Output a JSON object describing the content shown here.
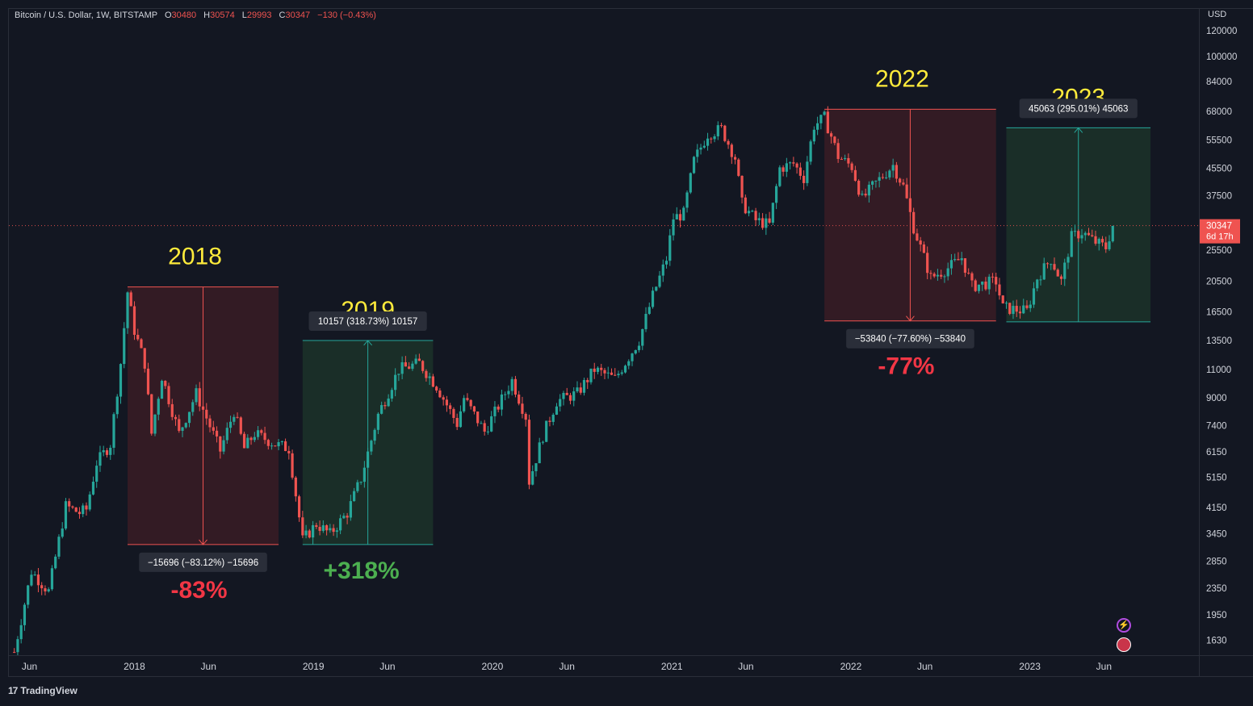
{
  "legend": {
    "symbol": "Bitcoin / U.S. Dollar, 1W, BITSTAMP",
    "o_label": "O",
    "o_value": "30480",
    "h_label": "H",
    "h_value": "30574",
    "l_label": "L",
    "l_value": "29993",
    "c_label": "C",
    "c_value": "30347",
    "change": "−130 (−0.43%)"
  },
  "currency": "USD",
  "last_price": {
    "value": "30347",
    "countdown": "6d 17h"
  },
  "brand": {
    "logo": "17",
    "name": "TradingView"
  },
  "colors": {
    "up": "#26a69a",
    "down": "#ef5350",
    "year_label": "#ffeb3b",
    "neg_pct": "#f23645",
    "pos_pct": "#4caf50",
    "neg_box_fill": "#391c24",
    "pos_box_fill": "#1c3329"
  },
  "icons": [
    "lightning-icon",
    "us-flag-icon"
  ],
  "chart_data": {
    "type": "candlestick",
    "title": "Bitcoin / U.S. Dollar, 1W, BITSTAMP",
    "scale": "log",
    "ylim": [
      1450,
      140000
    ],
    "xlim": [
      "2017-04-20",
      "2023-12-15"
    ],
    "y_ticks": [
      120000,
      100000,
      84000,
      68000,
      55500,
      45500,
      37500,
      25500,
      20500,
      16500,
      13500,
      11000,
      9000,
      7400,
      6150,
      5150,
      4150,
      3450,
      2850,
      2350,
      1950,
      1630
    ],
    "x_ticks": [
      {
        "date": "2017-06-01",
        "label": "Jun"
      },
      {
        "date": "2018-01-01",
        "label": "2018"
      },
      {
        "date": "2018-06-01",
        "label": "Jun"
      },
      {
        "date": "2019-01-01",
        "label": "2019"
      },
      {
        "date": "2019-06-01",
        "label": "Jun"
      },
      {
        "date": "2020-01-01",
        "label": "2020"
      },
      {
        "date": "2020-06-01",
        "label": "Jun"
      },
      {
        "date": "2021-01-01",
        "label": "2021"
      },
      {
        "date": "2021-06-01",
        "label": "Jun"
      },
      {
        "date": "2022-01-01",
        "label": "2022"
      },
      {
        "date": "2022-06-01",
        "label": "Jun"
      },
      {
        "date": "2023-01-01",
        "label": "2023"
      },
      {
        "date": "2023-06-01",
        "label": "Jun"
      }
    ],
    "anchors": [
      [
        "2017-05-01",
        1500
      ],
      [
        "2017-06-05",
        2650
      ],
      [
        "2017-07-10",
        2300
      ],
      [
        "2017-08-14",
        4200
      ],
      [
        "2017-09-11",
        4000
      ],
      [
        "2017-09-25",
        4100
      ],
      [
        "2017-10-16",
        5700
      ],
      [
        "2017-11-13",
        6500
      ],
      [
        "2017-12-04",
        11500
      ],
      [
        "2017-12-18",
        19000
      ],
      [
        "2018-01-01",
        14500
      ],
      [
        "2018-01-22",
        11500
      ],
      [
        "2018-02-05",
        7000
      ],
      [
        "2018-02-26",
        10500
      ],
      [
        "2018-04-02",
        7000
      ],
      [
        "2018-05-07",
        9300
      ],
      [
        "2018-06-25",
        6200
      ],
      [
        "2018-07-23",
        8200
      ],
      [
        "2018-08-13",
        6300
      ],
      [
        "2018-09-03",
        7000
      ],
      [
        "2018-10-15",
        6500
      ],
      [
        "2018-11-12",
        6300
      ],
      [
        "2018-12-10",
        3300
      ],
      [
        "2019-01-07",
        3700
      ],
      [
        "2019-02-04",
        3450
      ],
      [
        "2019-03-11",
        4000
      ],
      [
        "2019-04-08",
        5100
      ],
      [
        "2019-05-13",
        8000
      ],
      [
        "2019-06-24",
        11000
      ],
      [
        "2019-08-05",
        11500
      ],
      [
        "2019-09-09",
        9800
      ],
      [
        "2019-10-21",
        7500
      ],
      [
        "2019-11-04",
        9000
      ],
      [
        "2019-12-16",
        7100
      ],
      [
        "2020-01-13",
        8500
      ],
      [
        "2020-02-10",
        10200
      ],
      [
        "2020-03-09",
        7900
      ],
      [
        "2020-03-16",
        5000
      ],
      [
        "2020-04-13",
        6900
      ],
      [
        "2020-05-11",
        8800
      ],
      [
        "2020-06-22",
        9300
      ],
      [
        "2020-07-27",
        11000
      ],
      [
        "2020-09-07",
        10300
      ],
      [
        "2020-10-26",
        13500
      ],
      [
        "2020-11-23",
        18500
      ],
      [
        "2020-12-21",
        24000
      ],
      [
        "2021-01-04",
        32000
      ],
      [
        "2021-01-25",
        33000
      ],
      [
        "2021-02-15",
        48000
      ],
      [
        "2021-03-15",
        58000
      ],
      [
        "2021-04-12",
        60000
      ],
      [
        "2021-05-10",
        49000
      ],
      [
        "2021-05-24",
        35500
      ],
      [
        "2021-06-21",
        31500
      ],
      [
        "2021-07-19",
        30500
      ],
      [
        "2021-08-09",
        45500
      ],
      [
        "2021-09-06",
        47000
      ],
      [
        "2021-09-27",
        42500
      ],
      [
        "2021-10-18",
        61500
      ],
      [
        "2021-11-08",
        65000
      ],
      [
        "2021-11-22",
        57000
      ],
      [
        "2021-12-06",
        49500
      ],
      [
        "2022-01-03",
        46000
      ],
      [
        "2022-01-24",
        36500
      ],
      [
        "2022-02-14",
        40000
      ],
      [
        "2022-03-28",
        46500
      ],
      [
        "2022-04-18",
        40000
      ],
      [
        "2022-05-09",
        30000
      ],
      [
        "2022-06-13",
        21000
      ],
      [
        "2022-07-18",
        22500
      ],
      [
        "2022-08-15",
        24200
      ],
      [
        "2022-09-05",
        19800
      ],
      [
        "2022-10-24",
        20500
      ],
      [
        "2022-11-07",
        17000
      ],
      [
        "2022-12-26",
        16600
      ],
      [
        "2023-01-16",
        21000
      ],
      [
        "2023-02-13",
        24000
      ],
      [
        "2023-03-06",
        20500
      ],
      [
        "2023-03-27",
        28000
      ],
      [
        "2023-04-17",
        29000
      ],
      [
        "2023-05-15",
        27000
      ],
      [
        "2023-06-05",
        26000
      ],
      [
        "2023-06-19",
        30347
      ]
    ],
    "boxes": [
      {
        "year": "2018",
        "start": "2017-12-18",
        "end": "2018-10-22",
        "from": 19700,
        "to": 3200,
        "tooltip": "−15696 (−83.12%) −15696",
        "pct": "-83%",
        "direction": "down"
      },
      {
        "year": "2019",
        "start": "2018-12-10",
        "end": "2019-09-02",
        "from": 3200,
        "to": 13500,
        "tooltip": "10157 (318.73%) 10157",
        "pct": "+318%",
        "direction": "up"
      },
      {
        "year": "2022",
        "start": "2021-11-08",
        "end": "2022-10-24",
        "from": 69000,
        "to": 15500,
        "tooltip": "−53840 (−77.60%) −53840",
        "pct": "-77%",
        "direction": "down"
      },
      {
        "year": "2023",
        "start": "2022-11-14",
        "end": "2023-09-04",
        "from": 15400,
        "to": 60500,
        "tooltip": "45063 (295.01%) 45063",
        "pct": "",
        "direction": "up"
      }
    ]
  }
}
